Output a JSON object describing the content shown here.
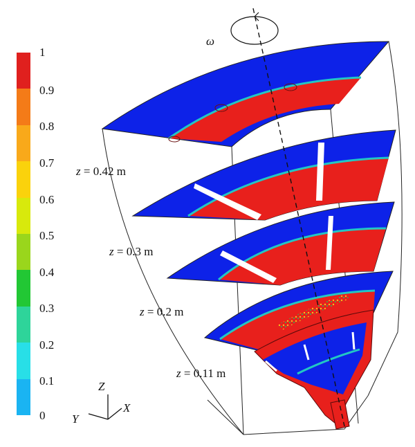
{
  "colorbar": {
    "ticks": [
      "1",
      "0.9",
      "0.8",
      "0.7",
      "0.6",
      "0.5",
      "0.4",
      "0.3",
      "0.2",
      "0.1",
      "0"
    ],
    "colors": [
      "#e0201e",
      "#f47b18",
      "#f9a91a",
      "#fad20c",
      "#d8e90c",
      "#9ad61c",
      "#22c734",
      "#2ed49a",
      "#28dfe7",
      "#1ab4f2",
      "#0d27ec"
    ]
  },
  "rotation_symbol": "ω",
  "slices": [
    {
      "var": "z",
      "value": "0.42",
      "unit": "m"
    },
    {
      "var": "z",
      "value": "0.3",
      "unit": "m"
    },
    {
      "var": "z",
      "value": "0.2",
      "unit": "m"
    },
    {
      "var": "z",
      "value": "0.11",
      "unit": "m"
    }
  ],
  "axes": {
    "z": "Z",
    "y": "Y",
    "x": "X"
  },
  "field_colors": {
    "liquid": "#e8201c",
    "gas": "#0d22e8",
    "interface": "#22c7c4"
  }
}
